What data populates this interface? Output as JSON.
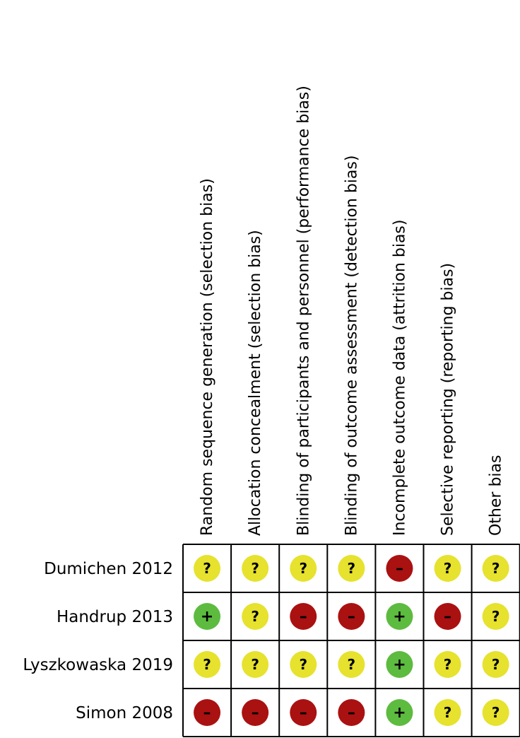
{
  "colors": {
    "low": "#5dbb3f",
    "unclear": "#e6e22e",
    "high": "#aa1111",
    "grid": "#000000",
    "symbol": "#000000"
  },
  "symbols": {
    "low": "+",
    "unclear": "?",
    "high": "–"
  },
  "chart_data": {
    "type": "table",
    "columns": [
      "Random sequence generation (selection bias)",
      "Allocation concealment (selection bias)",
      "Blinding of participants and personnel (performance bias)",
      "Blinding of outcome assessment (detection bias)",
      "Incomplete outcome data (attrition bias)",
      "Selective reporting (reporting bias)",
      "Other bias"
    ],
    "rows": [
      {
        "study": "Dumichen 2012",
        "judgements": [
          "unclear",
          "unclear",
          "unclear",
          "unclear",
          "high",
          "unclear",
          "unclear"
        ]
      },
      {
        "study": "Handrup 2013",
        "judgements": [
          "low",
          "unclear",
          "high",
          "high",
          "low",
          "high",
          "unclear"
        ]
      },
      {
        "study": "Lyszkowaska 2019",
        "judgements": [
          "unclear",
          "unclear",
          "unclear",
          "unclear",
          "low",
          "unclear",
          "unclear"
        ]
      },
      {
        "study": "Simon 2008",
        "judgements": [
          "high",
          "high",
          "high",
          "high",
          "low",
          "unclear",
          "unclear"
        ]
      }
    ]
  }
}
